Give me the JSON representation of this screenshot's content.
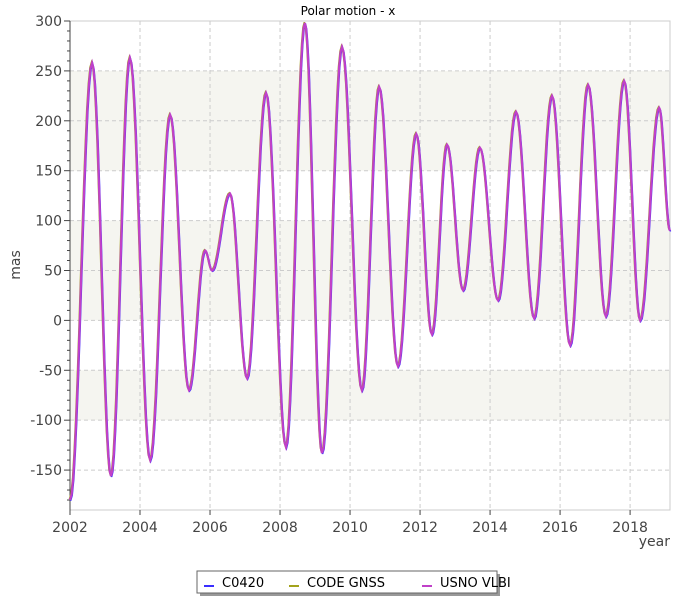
{
  "chart_data": {
    "type": "line",
    "title": "Polar motion - x",
    "xlabel": "year",
    "ylabel": "mas",
    "xlim": [
      2002,
      2019.14
    ],
    "ylim": [
      -190,
      300
    ],
    "xticks": [
      2002,
      2004,
      2006,
      2008,
      2010,
      2012,
      2014,
      2016,
      2018
    ],
    "yticks": [
      -150,
      -100,
      -50,
      0,
      50,
      100,
      150,
      200,
      250,
      300
    ],
    "grid": true,
    "legend_position": "bottom",
    "x": [
      2002.0,
      2002.63,
      2003.17,
      2003.71,
      2004.29,
      2004.86,
      2005.4,
      2005.86,
      2006.06,
      2006.57,
      2007.06,
      2007.6,
      2008.17,
      2008.71,
      2009.2,
      2009.77,
      2010.34,
      2010.83,
      2011.37,
      2011.89,
      2012.34,
      2012.77,
      2013.23,
      2013.71,
      2014.23,
      2014.74,
      2015.26,
      2015.77,
      2016.29,
      2016.8,
      2017.31,
      2017.83,
      2018.29,
      2018.83,
      2019.14
    ],
    "y": [
      -180,
      258,
      -156,
      263,
      -140,
      206,
      -70,
      70,
      50,
      127,
      -58,
      228,
      -127,
      298,
      -133,
      274,
      -70,
      234,
      -46,
      187,
      -14,
      176,
      30,
      173,
      20,
      209,
      2,
      225,
      -25,
      236,
      4,
      240,
      0,
      213,
      90
    ],
    "series": [
      {
        "name": "C0420",
        "color": "#3a2eff"
      },
      {
        "name": "CODE GNSS",
        "color": "#a3a31c"
      },
      {
        "name": "USNO VLBI",
        "color": "#c040c8"
      }
    ]
  }
}
